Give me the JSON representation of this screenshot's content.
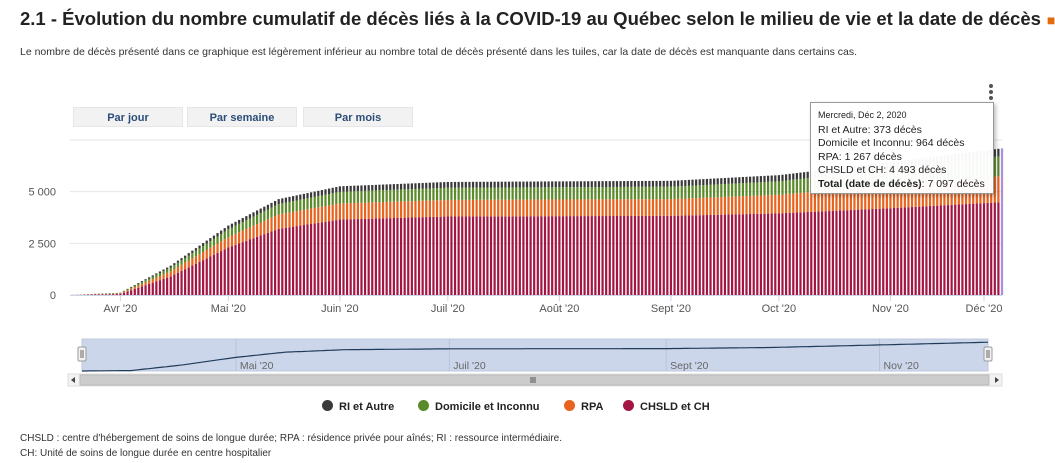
{
  "title": "2.1 - Évolution du nombre cumulatif de décès liés à la COVID-19 au Québec selon le milieu de vie et la date de décès",
  "title_mark": "■",
  "subtitle": "Le nombre de décès présenté dans ce graphique est légèrement inférieur au nombre total de décès présenté dans les tuiles, car la date de décès est manquante dans certains cas.",
  "range_buttons": [
    "Par jour",
    "Par semaine",
    "Par mois"
  ],
  "tooltip": {
    "date": "Mercredi, Déc 2, 2020",
    "rows": [
      "RI et Autre: 373 décès",
      "Domicile et Inconnu: 964 décès",
      "RPA: 1 267 décès",
      "CHSLD et CH: 4 493 décès"
    ],
    "total_label": "Total (date de décès)",
    "total_value": ": 7 097 décès"
  },
  "footnotes": [
    "CHSLD : centre d'hébergement de soins de longue durée; RPA : résidence privée pour aînés; RI : ressource intermédiaire.",
    "CH: Unité de soins de longue durée en centre hospitalier"
  ],
  "colors": {
    "ri": "#3a3a3a",
    "domicile": "#5a8a2a",
    "rpa": "#e8631d",
    "chsld": "#a31644",
    "highlight": "#a98fdc",
    "navigator_band": "#ccd6eb"
  },
  "chart_data": {
    "type": "bar",
    "stacked": true,
    "x_type": "date",
    "x_start": "2020-03-18",
    "x_end": "2020-12-02",
    "x_ticks": [
      {
        "date": "2020-04-01",
        "label": "Avr '20"
      },
      {
        "date": "2020-05-01",
        "label": "Mai '20"
      },
      {
        "date": "2020-06-01",
        "label": "Juin '20"
      },
      {
        "date": "2020-07-01",
        "label": "Juil '20"
      },
      {
        "date": "2020-08-01",
        "label": "Août '20"
      },
      {
        "date": "2020-09-01",
        "label": "Sept '20"
      },
      {
        "date": "2020-10-01",
        "label": "Oct '20"
      },
      {
        "date": "2020-11-01",
        "label": "Nov '20"
      },
      {
        "date": "2020-12-01",
        "label": "Déc '20"
      }
    ],
    "y_ticks": [
      {
        "value": 0,
        "label": "0"
      },
      {
        "value": 2500,
        "label": "2 500"
      },
      {
        "value": 5000,
        "label": "5 000"
      }
    ],
    "ylim": [
      0,
      7500
    ],
    "grid": true,
    "legend_position": "bottom",
    "series": [
      {
        "name": "RI et Autre",
        "color_key": "ri",
        "points": [
          [
            "2020-03-18",
            0
          ],
          [
            "2020-04-01",
            15
          ],
          [
            "2020-04-15",
            90
          ],
          [
            "2020-05-01",
            180
          ],
          [
            "2020-05-15",
            240
          ],
          [
            "2020-06-01",
            270
          ],
          [
            "2020-07-01",
            280
          ],
          [
            "2020-09-01",
            285
          ],
          [
            "2020-10-01",
            300
          ],
          [
            "2020-11-01",
            330
          ],
          [
            "2020-12-02",
            373
          ]
        ]
      },
      {
        "name": "Domicile et Inconnu",
        "color_key": "domicile",
        "points": [
          [
            "2020-03-18",
            0
          ],
          [
            "2020-04-01",
            20
          ],
          [
            "2020-04-15",
            180
          ],
          [
            "2020-05-01",
            380
          ],
          [
            "2020-05-15",
            500
          ],
          [
            "2020-06-01",
            560
          ],
          [
            "2020-07-01",
            590
          ],
          [
            "2020-09-01",
            600
          ],
          [
            "2020-10-01",
            650
          ],
          [
            "2020-11-01",
            800
          ],
          [
            "2020-12-02",
            964
          ]
        ]
      },
      {
        "name": "RPA",
        "color_key": "rpa",
        "points": [
          [
            "2020-03-18",
            0
          ],
          [
            "2020-04-01",
            25
          ],
          [
            "2020-04-15",
            250
          ],
          [
            "2020-05-01",
            500
          ],
          [
            "2020-05-15",
            700
          ],
          [
            "2020-06-01",
            780
          ],
          [
            "2020-07-01",
            800
          ],
          [
            "2020-09-01",
            810
          ],
          [
            "2020-10-01",
            900
          ],
          [
            "2020-11-01",
            1100
          ],
          [
            "2020-12-02",
            1267
          ]
        ]
      },
      {
        "name": "CHSLD et CH",
        "color_key": "chsld",
        "points": [
          [
            "2020-03-18",
            0
          ],
          [
            "2020-04-01",
            50
          ],
          [
            "2020-04-15",
            900
          ],
          [
            "2020-05-01",
            2300
          ],
          [
            "2020-05-15",
            3200
          ],
          [
            "2020-06-01",
            3650
          ],
          [
            "2020-07-01",
            3800
          ],
          [
            "2020-09-01",
            3830
          ],
          [
            "2020-10-01",
            3950
          ],
          [
            "2020-11-01",
            4200
          ],
          [
            "2020-12-02",
            4493
          ]
        ]
      }
    ]
  },
  "navigator": {
    "x_ticks": [
      {
        "date": "2020-05-01",
        "label": "Mai '20"
      },
      {
        "date": "2020-07-01",
        "label": "Juil '20"
      },
      {
        "date": "2020-09-01",
        "label": "Sept '20"
      },
      {
        "date": "2020-11-01",
        "label": "Nov '20"
      }
    ]
  }
}
